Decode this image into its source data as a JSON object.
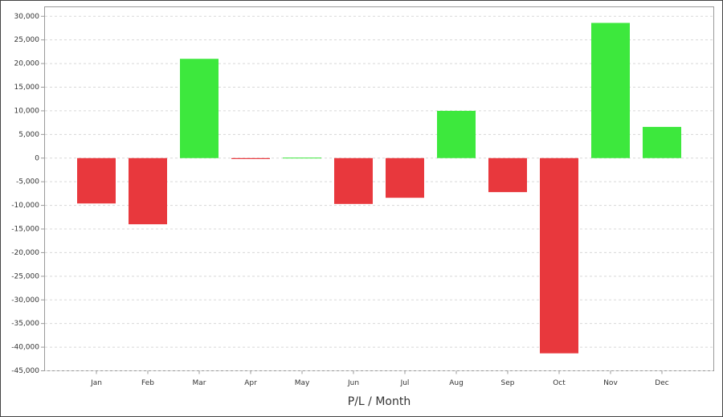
{
  "chart_data": {
    "type": "bar",
    "x_label": "P/L / Month",
    "categories": [
      "Jan",
      "Feb",
      "Mar",
      "Apr",
      "May",
      "Jun",
      "Jul",
      "Aug",
      "Sep",
      "Oct",
      "Nov",
      "Dec"
    ],
    "values": [
      -9600,
      -14000,
      21000,
      -200,
      100,
      -9700,
      -8400,
      10000,
      -7200,
      -41300,
      28600,
      6600
    ],
    "colors": [
      "#e8383d",
      "#e8383d",
      "#3de83d",
      "#e8383d",
      "#3de83d",
      "#e8383d",
      "#e8383d",
      "#3de83d",
      "#e8383d",
      "#e8383d",
      "#3de83d",
      "#3de83d"
    ],
    "ylim": [
      -45000,
      32000
    ],
    "yticks": [
      {
        "value": 30000,
        "label": "30,000"
      },
      {
        "value": 25000,
        "label": "25,000"
      },
      {
        "value": 20000,
        "label": "20,000"
      },
      {
        "value": 15000,
        "label": "15,000"
      },
      {
        "value": 10000,
        "label": "10,000"
      },
      {
        "value": 5000,
        "label": "5,000"
      },
      0,
      {
        "value": -5000,
        "label": "-5,000"
      },
      {
        "value": -10000,
        "label": "-10,000"
      },
      {
        "value": -15000,
        "label": "-15,000"
      },
      {
        "value": -20000,
        "label": "-20,000"
      },
      {
        "value": -25000,
        "label": "-25,000"
      },
      {
        "value": -30000,
        "label": "-30,000"
      },
      {
        "value": -35000,
        "label": "-35,000"
      },
      {
        "value": -40000,
        "label": "-40,000"
      },
      {
        "value": -45000,
        "label": "-45,000"
      }
    ],
    "grid": true
  }
}
